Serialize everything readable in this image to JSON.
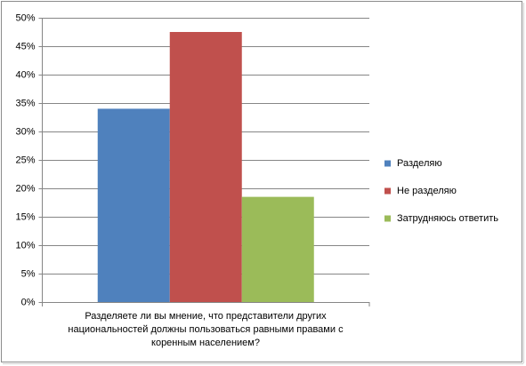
{
  "chart_data": {
    "type": "bar",
    "categories": [
      "Разделяете ли вы мнение, что представители других национальностей должны пользоваться равными правами с коренным населением?"
    ],
    "series": [
      {
        "name": "Разделяю",
        "color": "#4f81bd",
        "values": [
          34
        ]
      },
      {
        "name": "Не разделяю",
        "color": "#c0504d",
        "values": [
          47.5
        ]
      },
      {
        "name": "Затрудняюсь ответить",
        "color": "#9bbb59",
        "values": [
          18.5
        ]
      }
    ],
    "ylim": [
      0,
      50
    ],
    "yticks": [
      {
        "value": 0,
        "label": "0%"
      },
      {
        "value": 5,
        "label": "5%"
      },
      {
        "value": 10,
        "label": "10%"
      },
      {
        "value": 15,
        "label": "15%"
      },
      {
        "value": 20,
        "label": "20%"
      },
      {
        "value": 25,
        "label": "25%"
      },
      {
        "value": 30,
        "label": "30%"
      },
      {
        "value": 35,
        "label": "35%"
      },
      {
        "value": 40,
        "label": "40%"
      },
      {
        "value": 45,
        "label": "45%"
      },
      {
        "value": 50,
        "label": "50%"
      }
    ],
    "grid": true,
    "legend": "right"
  }
}
